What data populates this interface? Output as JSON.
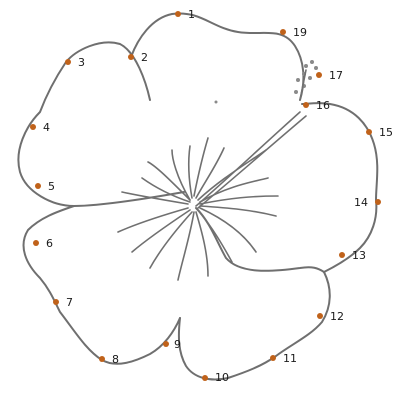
{
  "puzzle": {
    "points": [
      {
        "label": "1",
        "color": "#c0621a"
      },
      {
        "label": "2",
        "color": "#c0621a"
      },
      {
        "label": "3",
        "color": "#c0621a"
      },
      {
        "label": "4",
        "color": "#c0621a"
      },
      {
        "label": "5",
        "color": "#c0621a"
      },
      {
        "label": "6",
        "color": "#c0621a"
      },
      {
        "label": "7",
        "color": "#c0621a"
      },
      {
        "label": "8",
        "color": "#c0621a"
      },
      {
        "label": "9",
        "color": "#c0621a"
      },
      {
        "label": "10",
        "color": "#c0621a"
      },
      {
        "label": "11",
        "color": "#c0621a"
      },
      {
        "label": "12",
        "color": "#c0621a"
      },
      {
        "label": "13",
        "color": "#c0621a"
      },
      {
        "label": "14",
        "color": "#c0621a"
      },
      {
        "label": "15",
        "color": "#c0621a"
      },
      {
        "label": "16",
        "color": "#c0621a"
      },
      {
        "label": "17",
        "color": "#c0621a"
      },
      {
        "label": "19",
        "color": "#c0621a"
      }
    ],
    "line_color": "#6f6f6f"
  }
}
